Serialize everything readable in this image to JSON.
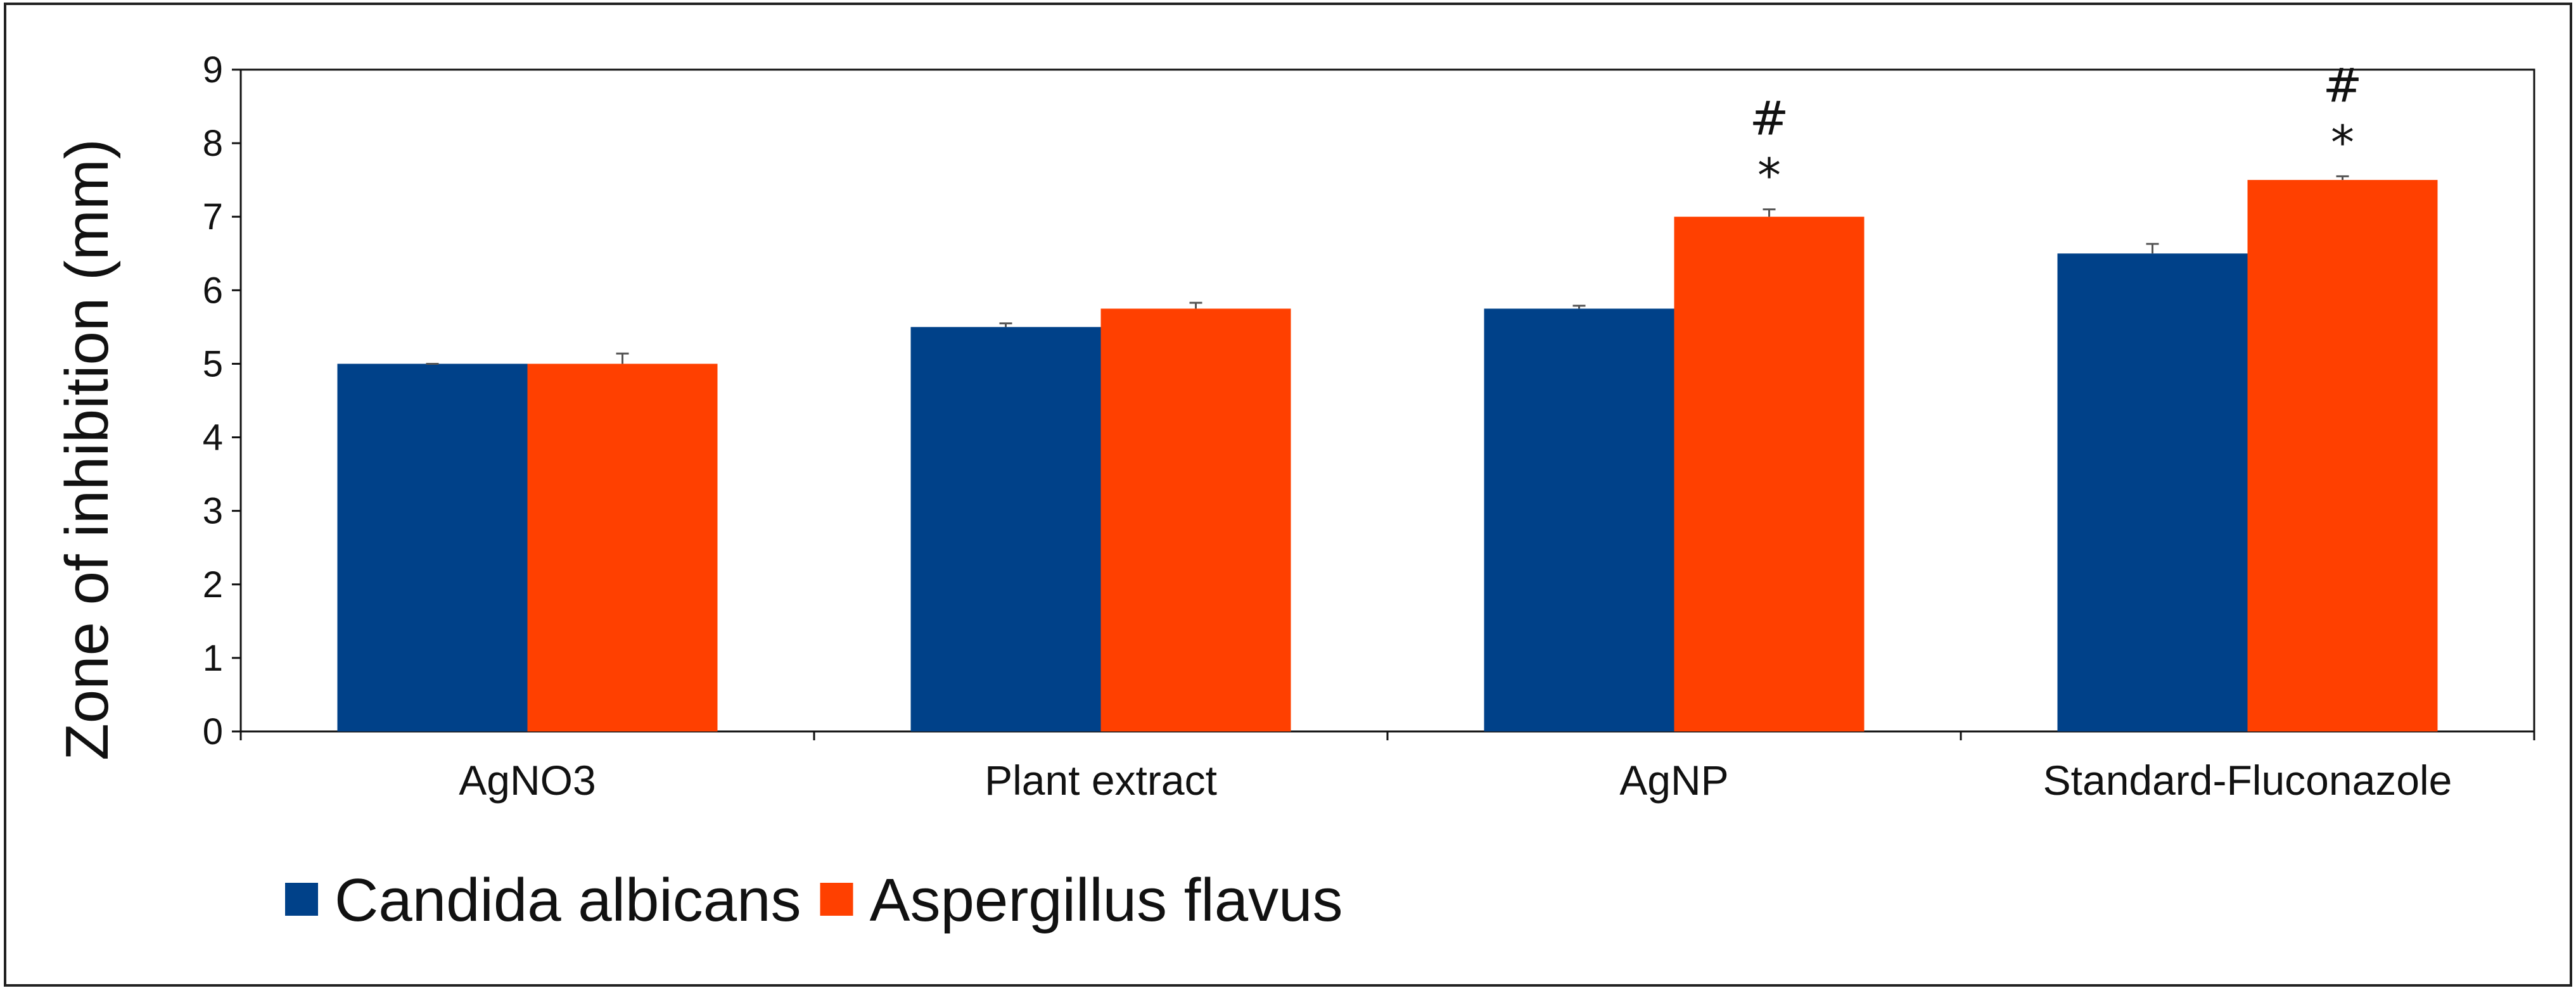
{
  "chart_data": {
    "type": "bar",
    "ylabel": "Zone of inhibition (mm)",
    "xlabel": "",
    "ylim": [
      0,
      9
    ],
    "yticks": [
      "0",
      "1",
      "2",
      "3",
      "4",
      "5",
      "6",
      "7",
      "8",
      "9"
    ],
    "categories": [
      "AgNO3",
      "Plant extract",
      "AgNP",
      "Standard-Fluconazole"
    ],
    "series": [
      {
        "name": "Candida albicans",
        "color": "#004189",
        "values": [
          5.0,
          5.5,
          5.75,
          6.5
        ],
        "errors": [
          0.0,
          0.05,
          0.04,
          0.13
        ]
      },
      {
        "name": "Aspergillus flavus",
        "color": "#FF4000",
        "values": [
          5.0,
          5.75,
          7.0,
          7.5
        ],
        "errors": [
          0.14,
          0.08,
          0.1,
          0.05
        ]
      }
    ],
    "annotations": [
      {
        "category": "AgNP",
        "series": "Aspergillus flavus",
        "symbols": [
          "#",
          "*"
        ]
      },
      {
        "category": "Standard-Fluconazole",
        "series": "Aspergillus flavus",
        "symbols": [
          "#",
          "*"
        ]
      }
    ],
    "grid": false,
    "legend_position": "bottom-left"
  }
}
